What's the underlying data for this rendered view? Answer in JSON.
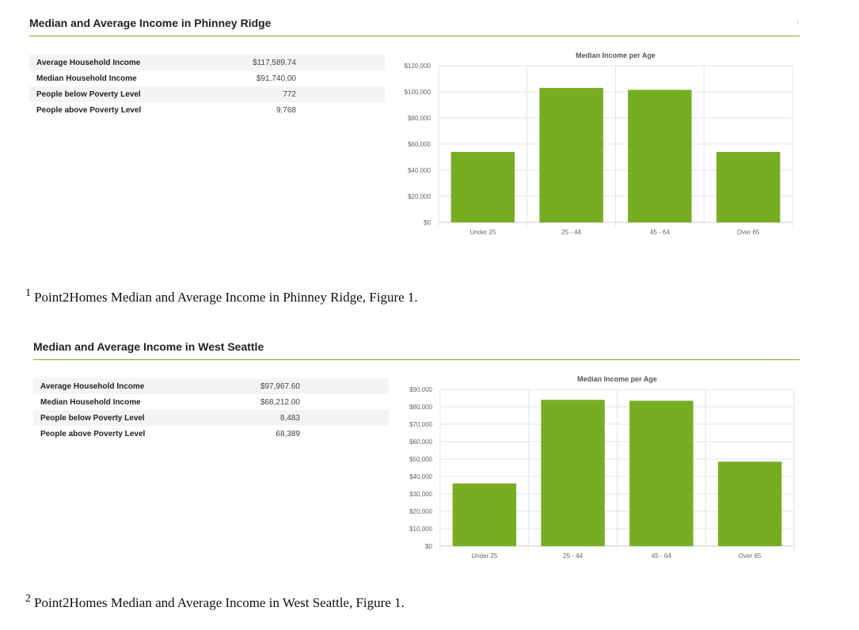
{
  "sections": [
    {
      "title": "Median and Average Income in Phinney Ridge",
      "mark": "i",
      "stats": [
        {
          "label": "Average Household Income",
          "value": "$117,589.74"
        },
        {
          "label": "Median Household Income",
          "value": "$91,740.00"
        },
        {
          "label": "People below Poverty Level",
          "value": "772"
        },
        {
          "label": "People above Poverty Level",
          "value": "9,768"
        }
      ],
      "footnote_num": "1",
      "footnote_text": "Point2Homes Median and Average Income in Phinney Ridge, Figure 1."
    },
    {
      "title": "Median and Average Income in West Seattle",
      "mark": "",
      "stats": [
        {
          "label": "Average Household Income",
          "value": "$97,967.60"
        },
        {
          "label": "Median Household Income",
          "value": "$68,212.00"
        },
        {
          "label": "People below Poverty Level",
          "value": "8,483"
        },
        {
          "label": "People above Poverty Level",
          "value": "68,389"
        }
      ],
      "footnote_num": "2",
      "footnote_text": "Point2Homes Median and Average Income in West Seattle, Figure 1."
    }
  ],
  "chart_data": [
    {
      "type": "bar",
      "title": "Median Income per Age",
      "categories": [
        "Under 25",
        "25 - 44",
        "45 - 64",
        "Over 65"
      ],
      "values": [
        54000,
        103000,
        101500,
        54000
      ],
      "ylim": [
        0,
        120000
      ],
      "yticks": [
        0,
        20000,
        40000,
        60000,
        80000,
        100000,
        120000
      ],
      "ytick_labels": [
        "$0",
        "$20,000",
        "$40,000",
        "$60,000",
        "$80,000",
        "$100,000",
        "$120,000"
      ],
      "bar_color": "#78ad23",
      "grid": true,
      "legend": "none"
    },
    {
      "type": "bar",
      "title": "Median Income per Age",
      "categories": [
        "Under 25",
        "25 - 44",
        "45 - 64",
        "Over 65"
      ],
      "values": [
        36000,
        84000,
        83500,
        48500
      ],
      "ylim": [
        0,
        90000
      ],
      "yticks": [
        0,
        10000,
        20000,
        30000,
        40000,
        50000,
        60000,
        70000,
        80000,
        90000
      ],
      "ytick_labels": [
        "$0",
        "$10,000",
        "$20,000",
        "$30,000",
        "$40,000",
        "$50,000",
        "$60,000",
        "$70,000",
        "$80,000",
        "$90,000"
      ],
      "bar_color": "#78ad23",
      "grid": true,
      "legend": "none"
    }
  ]
}
